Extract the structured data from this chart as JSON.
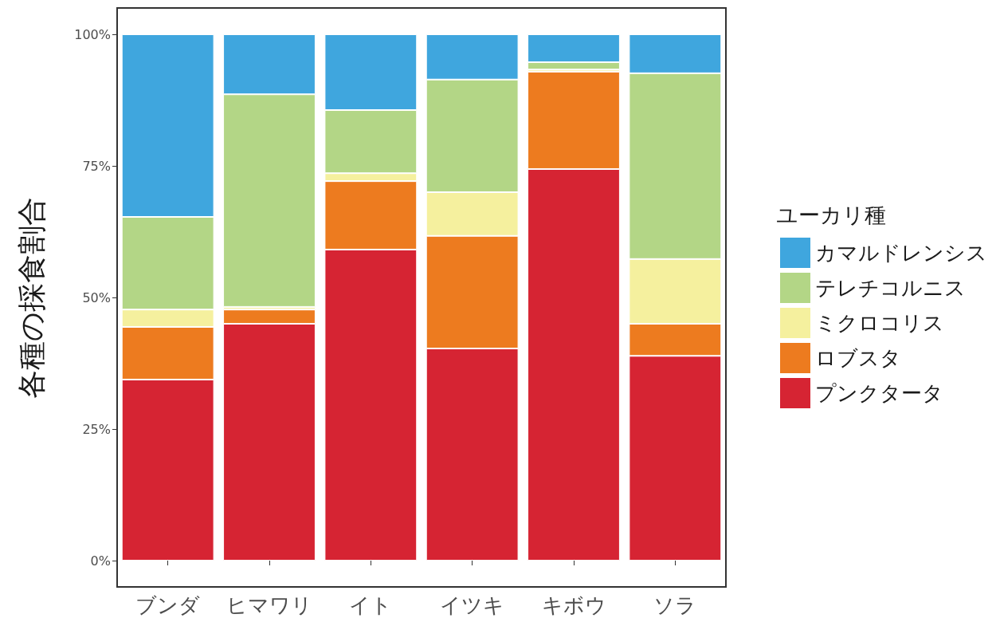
{
  "chart_data": {
    "type": "bar",
    "stacked": true,
    "ylabel": "各種の採食割合",
    "legend_title": "ユーカリ種",
    "legend": "right",
    "grid": false,
    "categories": [
      "ブンダ",
      "ヒマワリ",
      "イト",
      "イツキ",
      "キボウ",
      "ソラ"
    ],
    "ylim": [
      -5,
      105
    ],
    "yticks": [
      {
        "value": 0,
        "label": "0%"
      },
      {
        "value": 25,
        "label": "25%"
      },
      {
        "value": 50,
        "label": "50%"
      },
      {
        "value": 75,
        "label": "75%"
      },
      {
        "value": 100,
        "label": "100%"
      }
    ],
    "series": [
      {
        "name": "プンクタータ",
        "color": "#d62433",
        "values": [
          34.4,
          45.0,
          59.1,
          40.3,
          74.4,
          38.9
        ]
      },
      {
        "name": "ロブスタ",
        "color": "#ed7b1f",
        "values": [
          10.0,
          2.7,
          13.0,
          21.4,
          18.5,
          6.1
        ]
      },
      {
        "name": "ミクロコリス",
        "color": "#f5f09e",
        "values": [
          3.3,
          0.5,
          1.5,
          8.3,
          0.4,
          12.3
        ]
      },
      {
        "name": "テレチコルニス",
        "color": "#b3d686",
        "values": [
          17.6,
          40.4,
          12.0,
          21.4,
          1.4,
          35.3
        ]
      },
      {
        "name": "カマルドレンシス",
        "color": "#3fa6de",
        "values": [
          34.7,
          11.4,
          14.4,
          8.6,
          5.3,
          7.4
        ]
      }
    ]
  }
}
